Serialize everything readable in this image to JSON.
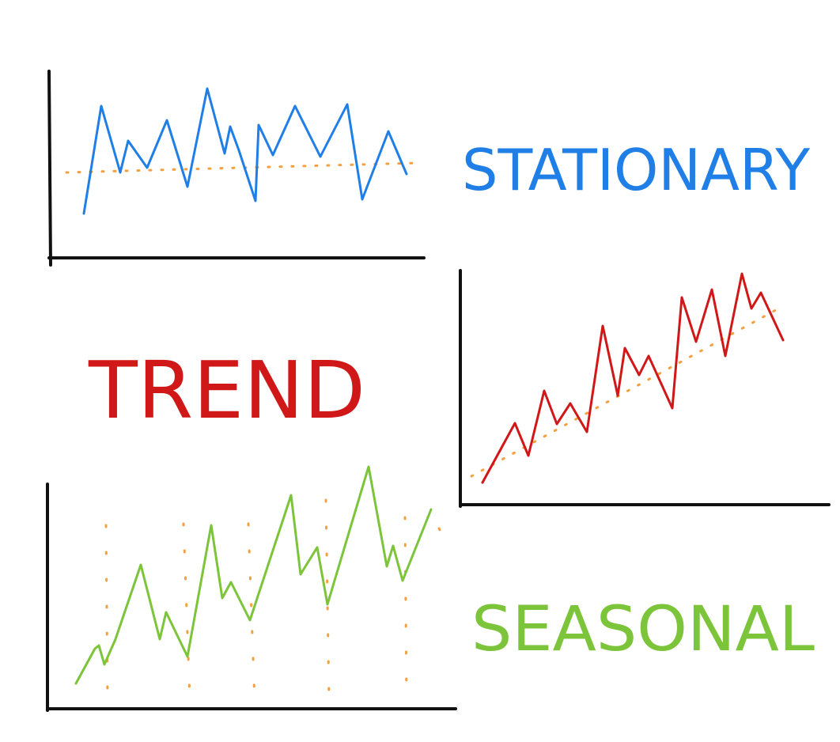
{
  "labels": {
    "stationary": "STATIONARY",
    "trend": "TREND",
    "seasonal": "SEASONAL"
  },
  "colors": {
    "stationary": "#1f7fe6",
    "trend": "#d01818",
    "seasonal": "#7cc43a",
    "reference": "#f4a040",
    "axis": "#111111"
  }
}
